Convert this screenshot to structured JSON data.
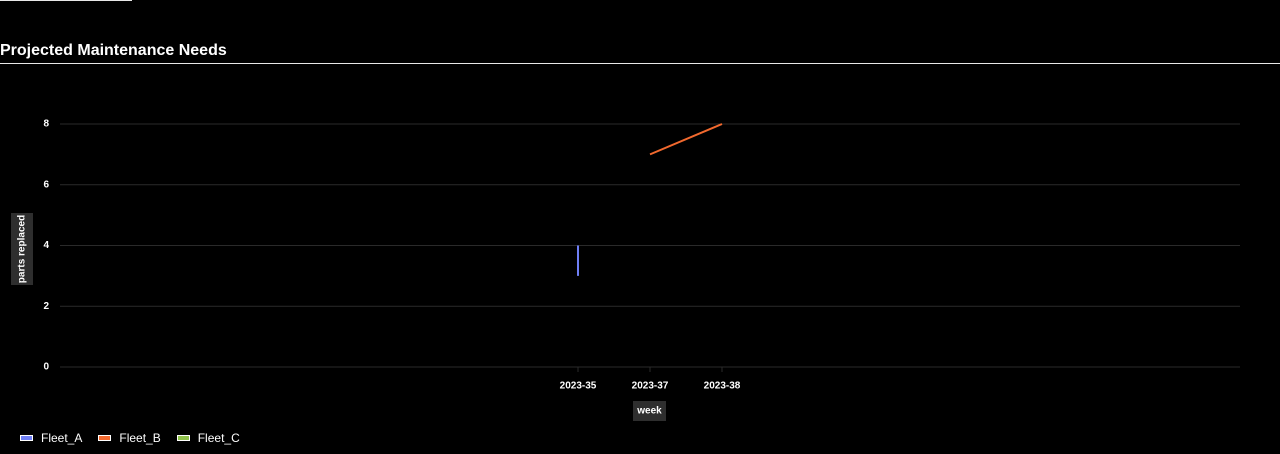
{
  "title": "Projected Maintenance Needs",
  "colors": {
    "background": "#000000",
    "grid": "#2a2a2a",
    "axis_label_bg": "#2e2e2e"
  },
  "chart_data": {
    "type": "line",
    "xlabel": "week",
    "ylabel": "parts replaced",
    "categories": [
      "2023-35",
      "2023-37",
      "2023-38"
    ],
    "yticks": [
      0,
      2,
      4,
      6,
      8
    ],
    "ylim": [
      0,
      8
    ],
    "grid": true,
    "legend_position": "bottom-left",
    "series": [
      {
        "name": "Fleet_A",
        "color": "#6f7ff5",
        "points": [
          {
            "x": "2023-35",
            "y": 3
          },
          {
            "x": "2023-35",
            "y": 4
          }
        ]
      },
      {
        "name": "Fleet_B",
        "color": "#f2692e",
        "points": [
          {
            "x": "2023-37",
            "y": 7
          },
          {
            "x": "2023-38",
            "y": 8
          }
        ]
      },
      {
        "name": "Fleet_C",
        "color": "#8fc24a",
        "points": []
      }
    ]
  }
}
